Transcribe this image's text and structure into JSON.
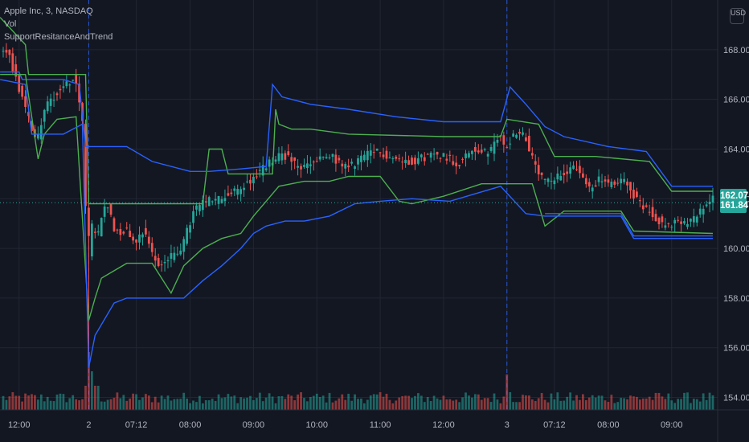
{
  "legend": {
    "title": "Apple Inc, 3, NASDAQ",
    "vol": "Vol",
    "indicator": "SupportResitanceAndTrend"
  },
  "currency_button": "USD",
  "price_tags": {
    "upper": {
      "label": "162.07",
      "value": 162.07,
      "color": "#26a69a"
    },
    "lower": {
      "label": "161.84",
      "value": 161.84,
      "color": "#26a69a"
    }
  },
  "colors": {
    "background": "#131722",
    "up": "#26a69a",
    "down": "#ef5350",
    "support_line": "#2962ff",
    "trend_line": "#4caf50",
    "grid": "#222632",
    "text": "#b2b5be",
    "session_separator": "#2962ff"
  },
  "chart_data": {
    "type": "candlestick",
    "title": "Apple Inc, 3, NASDAQ",
    "y_ticks": [
      154,
      156,
      158,
      160,
      162,
      164,
      166,
      168
    ],
    "y_range": [
      153.5,
      170.0
    ],
    "x_ticks": [
      {
        "label": "12:00",
        "t": 6
      },
      {
        "label": "2",
        "t": 28
      },
      {
        "label": "07:12",
        "t": 43
      },
      {
        "label": "08:00",
        "t": 60
      },
      {
        "label": "09:00",
        "t": 80
      },
      {
        "label": "10:00",
        "t": 100
      },
      {
        "label": "11:00",
        "t": 120
      },
      {
        "label": "12:00",
        "t": 140
      },
      {
        "label": "3",
        "t": 160
      },
      {
        "label": "07:12",
        "t": 175
      },
      {
        "label": "08:00",
        "t": 192
      },
      {
        "label": "09:00",
        "t": 212
      }
    ],
    "session_breaks": [
      28,
      160
    ],
    "lines": [
      {
        "name": "upper-trend",
        "color": "#4caf50",
        "points": [
          [
            0,
            169.3
          ],
          [
            8,
            168.2
          ],
          [
            9,
            167.0
          ],
          [
            18,
            167.0
          ],
          [
            27,
            167.0
          ],
          [
            28,
            161.8
          ],
          [
            40,
            161.8
          ],
          [
            64,
            161.8
          ],
          [
            66,
            164.0
          ],
          [
            70,
            164.0
          ],
          [
            72,
            163.0
          ],
          [
            86,
            163.0
          ],
          [
            87,
            165.6
          ],
          [
            88,
            165.0
          ],
          [
            92,
            164.8
          ],
          [
            98,
            164.8
          ],
          [
            110,
            164.6
          ],
          [
            140,
            164.5
          ],
          [
            158,
            164.5
          ],
          [
            160,
            165.2
          ],
          [
            170,
            165.0
          ],
          [
            175,
            163.7
          ],
          [
            188,
            163.7
          ],
          [
            205,
            163.5
          ],
          [
            212,
            162.3
          ],
          [
            225,
            162.3
          ]
        ]
      },
      {
        "name": "upper-resistance",
        "color": "#2962ff",
        "points": [
          [
            0,
            167.1
          ],
          [
            6,
            167.1
          ],
          [
            7,
            166.8
          ],
          [
            20,
            166.8
          ],
          [
            25,
            166.6
          ],
          [
            27,
            164.1
          ],
          [
            40,
            164.1
          ],
          [
            48,
            163.5
          ],
          [
            60,
            163.1
          ],
          [
            66,
            163.1
          ],
          [
            76,
            163.2
          ],
          [
            84,
            163.3
          ],
          [
            86,
            166.6
          ],
          [
            89,
            166.1
          ],
          [
            98,
            165.8
          ],
          [
            110,
            165.6
          ],
          [
            125,
            165.3
          ],
          [
            140,
            165.1
          ],
          [
            158,
            165.1
          ],
          [
            161,
            166.5
          ],
          [
            166,
            165.8
          ],
          [
            172,
            164.9
          ],
          [
            178,
            164.5
          ],
          [
            192,
            164.1
          ],
          [
            204,
            163.9
          ],
          [
            212,
            162.5
          ],
          [
            225,
            162.5
          ]
        ]
      },
      {
        "name": "mid-trend",
        "color": "#4caf50",
        "points": [
          [
            0,
            167.0
          ],
          [
            8,
            167.0
          ],
          [
            12,
            163.6
          ],
          [
            14,
            164.6
          ],
          [
            18,
            165.2
          ],
          [
            24,
            165.3
          ],
          [
            28,
            157.1
          ],
          [
            30,
            158.0
          ],
          [
            32,
            158.8
          ],
          [
            40,
            159.4
          ],
          [
            48,
            159.4
          ],
          [
            54,
            158.2
          ],
          [
            58,
            159.3
          ],
          [
            64,
            160.0
          ],
          [
            70,
            160.4
          ],
          [
            76,
            160.6
          ],
          [
            80,
            161.3
          ],
          [
            84,
            161.9
          ],
          [
            88,
            162.5
          ],
          [
            96,
            162.7
          ],
          [
            104,
            162.7
          ],
          [
            110,
            162.9
          ],
          [
            120,
            162.9
          ],
          [
            126,
            161.9
          ],
          [
            130,
            161.8
          ],
          [
            140,
            162.1
          ],
          [
            152,
            162.6
          ],
          [
            160,
            162.6
          ],
          [
            168,
            162.6
          ],
          [
            172,
            160.9
          ],
          [
            178,
            161.5
          ],
          [
            196,
            161.5
          ],
          [
            200,
            160.7
          ],
          [
            225,
            160.6
          ]
        ]
      },
      {
        "name": "lower-support",
        "color": "#2962ff",
        "points": [
          [
            0,
            166.8
          ],
          [
            8,
            166.6
          ],
          [
            10,
            164.6
          ],
          [
            20,
            164.6
          ],
          [
            26,
            165.0
          ],
          [
            28,
            155.2
          ],
          [
            30,
            156.5
          ],
          [
            36,
            157.8
          ],
          [
            40,
            158.0
          ],
          [
            52,
            158.0
          ],
          [
            58,
            158.0
          ],
          [
            64,
            158.7
          ],
          [
            70,
            159.3
          ],
          [
            76,
            160.0
          ],
          [
            80,
            160.6
          ],
          [
            84,
            160.9
          ],
          [
            90,
            161.1
          ],
          [
            96,
            161.1
          ],
          [
            104,
            161.3
          ],
          [
            112,
            161.8
          ],
          [
            120,
            161.9
          ],
          [
            130,
            162.0
          ],
          [
            142,
            161.9
          ],
          [
            150,
            162.2
          ],
          [
            158,
            162.5
          ],
          [
            166,
            161.4
          ],
          [
            172,
            161.3
          ],
          [
            196,
            161.3
          ],
          [
            200,
            160.4
          ],
          [
            225,
            160.4
          ]
        ]
      },
      {
        "name": "lower-trend-2",
        "color": "#2962ff",
        "points": [
          [
            172,
            161.4
          ],
          [
            196,
            161.4
          ],
          [
            200,
            160.5
          ],
          [
            225,
            160.5
          ]
        ]
      }
    ],
    "waypoints": [
      [
        0,
        167.7
      ],
      [
        3,
        168.0
      ],
      [
        6,
        166.6
      ],
      [
        9,
        165.4
      ],
      [
        12,
        164.3
      ],
      [
        15,
        165.8
      ],
      [
        18,
        166.2
      ],
      [
        21,
        166.6
      ],
      [
        24,
        166.9
      ],
      [
        27,
        164.7
      ],
      [
        28,
        158.6
      ],
      [
        29,
        161.0
      ],
      [
        31,
        160.3
      ],
      [
        34,
        162.0
      ],
      [
        37,
        160.6
      ],
      [
        40,
        160.8
      ],
      [
        43,
        160.3
      ],
      [
        46,
        160.8
      ],
      [
        50,
        159.3
      ],
      [
        54,
        159.6
      ],
      [
        58,
        160.1
      ],
      [
        62,
        161.6
      ],
      [
        66,
        161.9
      ],
      [
        70,
        162.0
      ],
      [
        75,
        162.3
      ],
      [
        80,
        162.8
      ],
      [
        85,
        163.4
      ],
      [
        90,
        163.8
      ],
      [
        95,
        163.2
      ],
      [
        100,
        163.5
      ],
      [
        105,
        163.7
      ],
      [
        110,
        163.2
      ],
      [
        115,
        163.7
      ],
      [
        120,
        163.9
      ],
      [
        125,
        163.6
      ],
      [
        130,
        163.5
      ],
      [
        135,
        163.7
      ],
      [
        140,
        163.8
      ],
      [
        145,
        163.4
      ],
      [
        150,
        164.0
      ],
      [
        155,
        163.8
      ],
      [
        158,
        164.6
      ],
      [
        160,
        164.0
      ],
      [
        163,
        164.7
      ],
      [
        166,
        164.6
      ],
      [
        170,
        163.0
      ],
      [
        174,
        162.6
      ],
      [
        178,
        163.0
      ],
      [
        182,
        163.4
      ],
      [
        186,
        162.4
      ],
      [
        190,
        162.8
      ],
      [
        194,
        162.5
      ],
      [
        198,
        162.8
      ],
      [
        202,
        161.8
      ],
      [
        206,
        161.5
      ],
      [
        210,
        160.9
      ],
      [
        214,
        161.0
      ],
      [
        218,
        161.0
      ],
      [
        222,
        161.5
      ],
      [
        225,
        162.1
      ]
    ]
  }
}
